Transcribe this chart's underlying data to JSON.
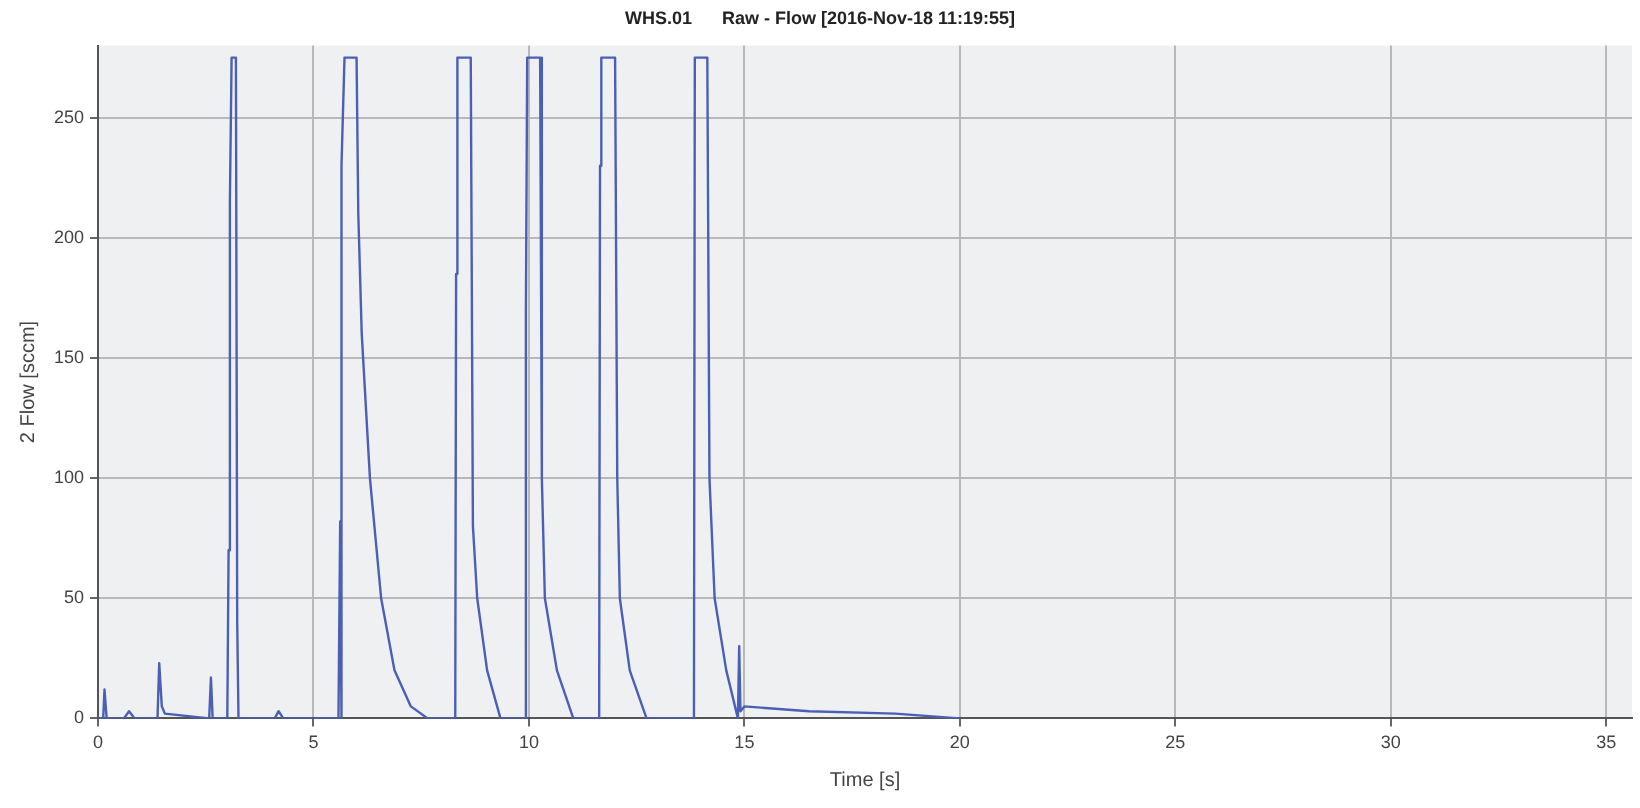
{
  "chart_data": {
    "type": "line",
    "title": "WHS.01      Raw - Flow [2016-Nov-18 11:19:55]",
    "xlabel": "Time [s]",
    "ylabel": "2 Flow [sccm]",
    "xlim": [
      0,
      35.6
    ],
    "xticks": [
      0,
      5,
      10,
      15,
      20,
      25,
      30,
      35
    ],
    "ylim": [
      0,
      280
    ],
    "yticks": [
      0,
      50,
      100,
      150,
      200,
      250
    ],
    "grid": true,
    "series": [
      {
        "color": "#4a5fb5",
        "x": [
          0,
          0.12,
          0.15,
          0.2,
          0.6,
          0.72,
          0.85,
          1.38,
          1.42,
          1.48,
          1.55,
          2.58,
          2.62,
          2.66,
          3.0,
          3.03,
          3.06,
          3.1,
          3.2,
          3.23,
          3.26,
          3.3,
          3.35,
          4.1,
          4.19,
          4.3,
          5.58,
          5.62,
          5.64,
          5.66,
          5.72,
          6.0,
          6.04,
          6.12,
          6.31,
          6.57,
          6.88,
          7.26,
          7.65,
          8.29,
          8.31,
          8.34,
          8.65,
          8.7,
          8.8,
          9.03,
          9.34,
          9.91,
          9.93,
          9.96,
          10.26,
          10.3,
          10.37,
          10.65,
          11.03,
          11.63,
          11.65,
          11.68,
          12.0,
          12.05,
          12.11,
          12.34,
          12.73,
          13.83,
          13.85,
          14.14,
          14.19,
          14.31,
          14.58,
          14.85,
          14.88,
          14.91,
          15.0,
          16.5,
          18.5,
          20
        ],
        "values": [
          0,
          0,
          12,
          0,
          0,
          3,
          0,
          0,
          23,
          5,
          2,
          0,
          17,
          0,
          0,
          70,
          215,
          275,
          275,
          40,
          0,
          0,
          0,
          0,
          3,
          0,
          0,
          82,
          0,
          230,
          275,
          275,
          210,
          160,
          100,
          50,
          20,
          5,
          0,
          0,
          185,
          275,
          275,
          80,
          50,
          20,
          0,
          0,
          170,
          275,
          275,
          100,
          50,
          20,
          0,
          0,
          230,
          275,
          275,
          100,
          50,
          20,
          0,
          0,
          275,
          275,
          100,
          50,
          20,
          0,
          30,
          3,
          5,
          3,
          2,
          0
        ]
      }
    ]
  }
}
